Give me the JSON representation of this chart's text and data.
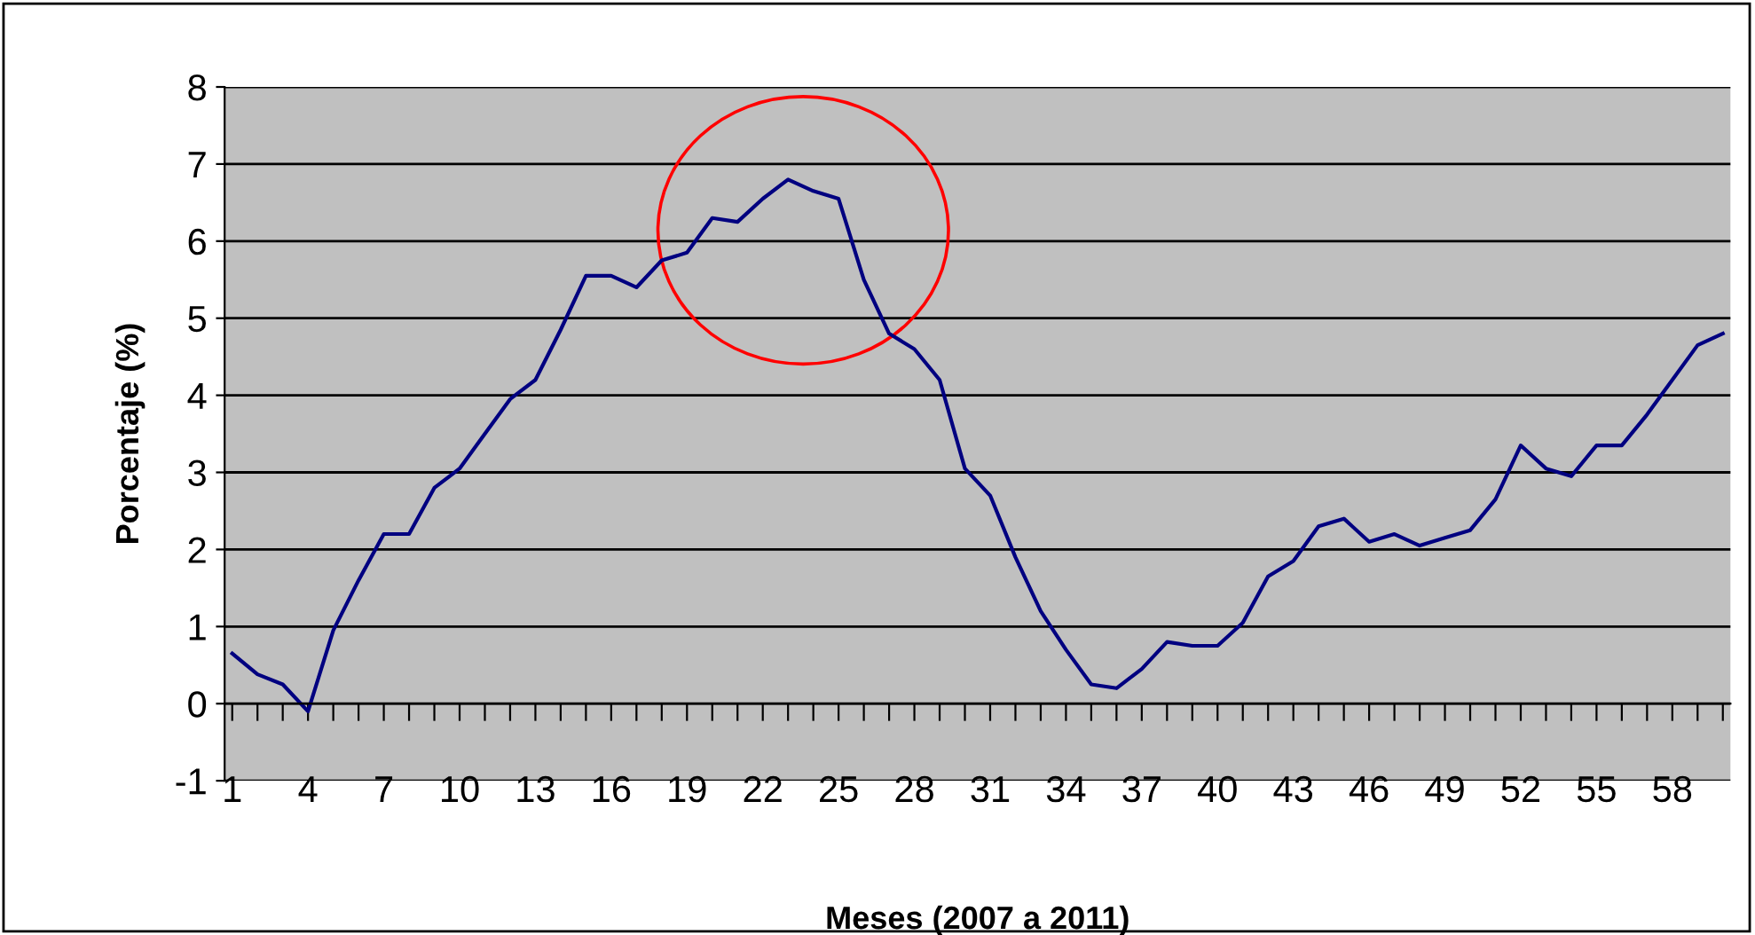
{
  "chart_data": {
    "type": "line",
    "xlabel": "Meses (2007 a 2011)",
    "ylabel": "Porcentaje (%)",
    "categories": [
      "1",
      null,
      null,
      "4",
      null,
      null,
      "7",
      null,
      null,
      "10",
      null,
      null,
      "13",
      null,
      null,
      "16",
      null,
      null,
      "19",
      null,
      null,
      "22",
      null,
      null,
      "25",
      null,
      null,
      "28",
      null,
      null,
      "31",
      null,
      null,
      "34",
      null,
      null,
      "37",
      null,
      null,
      "40",
      null,
      null,
      "43",
      null,
      null,
      "46",
      null,
      null,
      "49",
      null,
      null,
      "52",
      null,
      null,
      "55",
      null,
      null,
      "58",
      null,
      null
    ],
    "series": [
      {
        "color": "#000080",
        "values": [
          0.65,
          0.38,
          0.25,
          -0.1,
          0.95,
          1.6,
          2.2,
          2.2,
          2.8,
          3.05,
          3.5,
          3.95,
          4.2,
          4.85,
          5.55,
          5.55,
          5.4,
          5.75,
          5.85,
          6.3,
          6.25,
          6.55,
          6.8,
          6.65,
          6.55,
          5.5,
          4.8,
          4.6,
          4.2,
          3.05,
          2.7,
          1.9,
          1.2,
          0.7,
          0.25,
          0.2,
          0.45,
          0.8,
          0.75,
          0.75,
          1.05,
          1.65,
          1.85,
          2.3,
          2.4,
          2.1,
          2.2,
          2.05,
          2.15,
          2.25,
          2.65,
          3.35,
          3.05,
          2.95,
          3.35,
          3.35,
          3.75,
          4.2,
          4.65,
          4.8
        ]
      }
    ],
    "ylim": [
      -1,
      8
    ],
    "yticks": [
      -1,
      0,
      1,
      2,
      3,
      4,
      5,
      6,
      7,
      8
    ],
    "grid": "y",
    "line_style": "solid"
  }
}
